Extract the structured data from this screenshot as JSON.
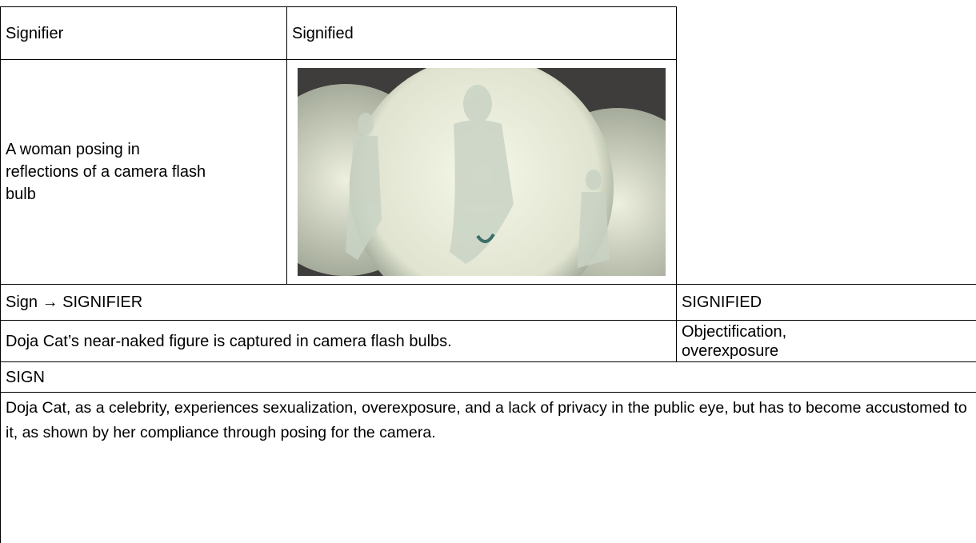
{
  "table": {
    "rows": [
      [
        "Signifier",
        "Signified"
      ],
      [
        "A woman posing in reflections of a camera flash bulb"
      ],
      [
        "Sign → SIGNIFIER",
        "SIGNIFIED"
      ],
      [
        "Doja Cat’s near-naked figure is captured in camera flash bulbs.",
        "Objectification, overexposure"
      ],
      [
        "SIGN"
      ],
      [
        "Doja Cat, as a celebrity, experiences sexualization, overexposure, and a lack of privacy in the public eye, but has to become accustomed to it, as shown by her compliance through posing for the camera."
      ]
    ]
  }
}
